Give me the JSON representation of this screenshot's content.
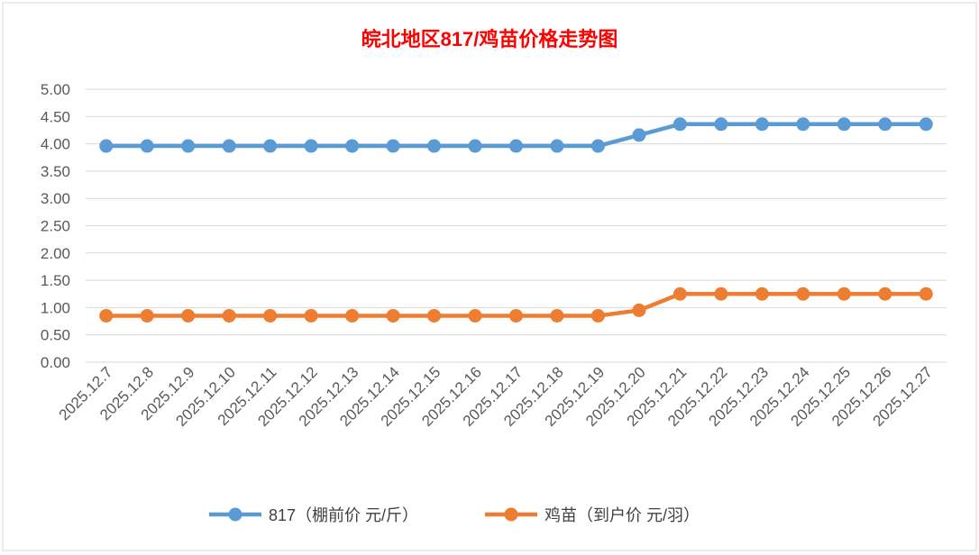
{
  "chart_data": {
    "type": "line",
    "title": "皖北地区817/鸡苗价格走势图",
    "categories": [
      "2025.12.7",
      "2025.12.8",
      "2025.12.9",
      "2025.12.10",
      "2025.12.11",
      "2025.12.12",
      "2025.12.13",
      "2025.12.14",
      "2025.12.15",
      "2025.12.16",
      "2025.12.17",
      "2025.12.18",
      "2025.12.19",
      "2025.12.20",
      "2025.12.21",
      "2025.12.22",
      "2025.12.23",
      "2025.12.24",
      "2025.12.25",
      "2025.12.26",
      "2025.12.27"
    ],
    "series": [
      {
        "name": "817（棚前价 元/斤）",
        "color": "#5b9bd5",
        "values": [
          3.96,
          3.96,
          3.96,
          3.96,
          3.96,
          3.96,
          3.96,
          3.96,
          3.96,
          3.96,
          3.96,
          3.96,
          3.96,
          4.16,
          4.36,
          4.36,
          4.36,
          4.36,
          4.36,
          4.36,
          4.36
        ]
      },
      {
        "name": "鸡苗（到户价 元/羽）",
        "color": "#ed7d31",
        "values": [
          0.85,
          0.85,
          0.85,
          0.85,
          0.85,
          0.85,
          0.85,
          0.85,
          0.85,
          0.85,
          0.85,
          0.85,
          0.85,
          0.95,
          1.25,
          1.25,
          1.25,
          1.25,
          1.25,
          1.25,
          1.25
        ]
      }
    ],
    "yticks": [
      "0.00",
      "0.50",
      "1.00",
      "1.50",
      "2.00",
      "2.50",
      "3.00",
      "3.50",
      "4.00",
      "4.50",
      "5.00"
    ],
    "ylim": [
      0,
      5
    ],
    "grid": true,
    "legend": "bottom"
  }
}
